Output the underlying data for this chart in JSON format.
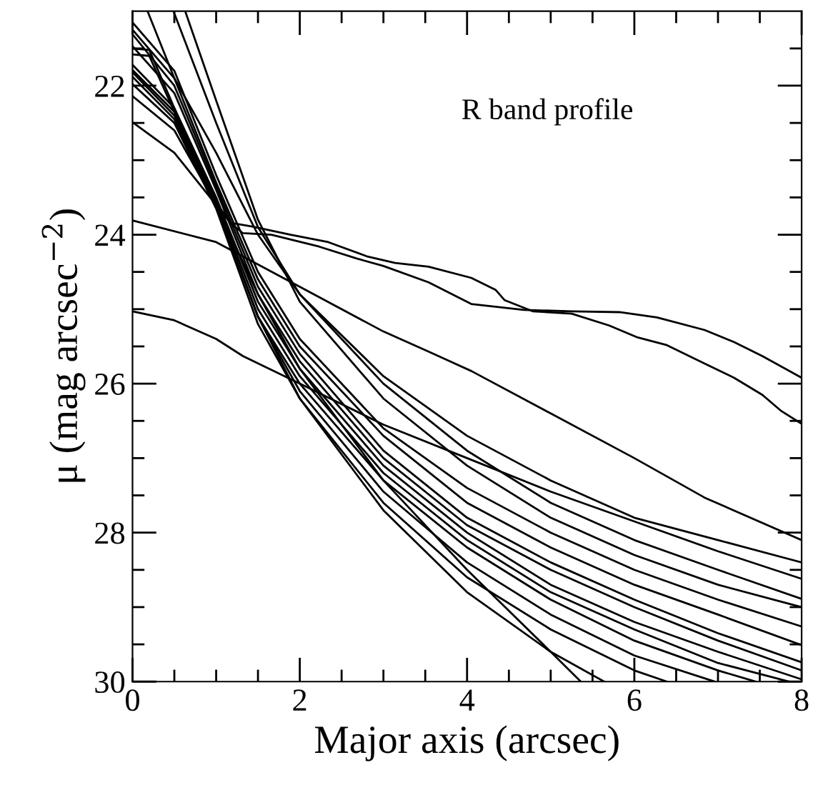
{
  "chart_data": {
    "type": "line",
    "xlabel": "Major axis (arcsec)",
    "ylabel": "μ (mag arcsec$^{−2}$)",
    "annotations": [
      "R band profile"
    ],
    "xlim": [
      0,
      8
    ],
    "ylim": [
      30,
      21
    ],
    "xticks": [
      0,
      {
        "value": 0.5,
        "label": null
      },
      {
        "value": 1,
        "label": null
      },
      {
        "value": 1.5,
        "label": null
      },
      2,
      {
        "value": 2.5,
        "label": null
      },
      {
        "value": 3,
        "label": null
      },
      {
        "value": 3.5,
        "label": null
      },
      4,
      {
        "value": 4.5,
        "label": null
      },
      {
        "value": 5,
        "label": null
      },
      {
        "value": 5.5,
        "label": null
      },
      6,
      {
        "value": 6.5,
        "label": null
      },
      {
        "value": 7,
        "label": null
      },
      {
        "value": 7.5,
        "label": null
      },
      8
    ],
    "yticks": [
      {
        "value": 21.5,
        "label": null
      },
      22,
      {
        "value": 22.5,
        "label": null
      },
      {
        "value": 23,
        "label": null
      },
      {
        "value": 23.5,
        "label": null
      },
      24,
      {
        "value": 24.5,
        "label": null
      },
      {
        "value": 25,
        "label": null
      },
      {
        "value": 25.5,
        "label": null
      },
      26,
      {
        "value": 26.5,
        "label": null
      },
      {
        "value": 27,
        "label": null
      },
      {
        "value": 27.5,
        "label": null
      },
      28,
      {
        "value": 28.5,
        "label": null
      },
      {
        "value": 29,
        "label": null
      },
      {
        "value": 29.5,
        "label": null
      },
      30
    ],
    "grid": false,
    "marker": "none",
    "line_style": "solid",
    "series": [
      {
        "color": "#000000",
        "x": [
          0,
          0.2,
          0.5,
          0.8,
          0.97,
          1.17,
          1.32,
          1.66,
          2.23,
          2.68,
          3.0,
          3.54,
          4.05,
          4.68,
          5.25,
          5.82,
          6.27,
          6.84,
          7.19,
          7.53,
          8
        ],
        "values": [
          21.5,
          21.52,
          22.3,
          23.1,
          23.52,
          23.84,
          23.98,
          24.0,
          24.16,
          24.32,
          24.42,
          24.64,
          24.93,
          25.01,
          25.03,
          25.04,
          25.11,
          25.28,
          25.44,
          25.63,
          25.92
        ]
      },
      {
        "color": "#000000",
        "x": [
          0,
          0.2,
          0.5,
          0.8,
          0.97,
          1.17,
          1.43,
          1.89,
          2.34,
          2.8,
          3.14,
          3.54,
          4.05,
          4.34,
          4.45,
          4.79,
          5.25,
          5.7,
          6.04,
          6.38,
          6.84,
          7.19,
          7.53,
          7.76,
          8
        ],
        "values": [
          21.58,
          21.6,
          22.35,
          23.15,
          23.55,
          23.84,
          23.89,
          24.0,
          24.1,
          24.29,
          24.38,
          24.43,
          24.58,
          24.74,
          24.88,
          25.03,
          25.06,
          25.22,
          25.38,
          25.48,
          25.73,
          25.92,
          26.15,
          26.37,
          26.54
        ]
      },
      {
        "color": "#000000",
        "x": [
          0,
          1,
          2,
          3,
          3.54,
          4.05,
          5,
          6,
          6.84,
          8
        ],
        "values": [
          23.81,
          24.1,
          24.7,
          25.3,
          25.57,
          25.83,
          26.4,
          27.0,
          27.53,
          28.1
        ]
      },
      {
        "color": "#000000",
        "x": [
          0,
          0.5,
          1,
          1.32,
          2,
          3,
          4,
          5,
          6,
          7,
          8
        ],
        "values": [
          25.03,
          25.15,
          25.4,
          25.63,
          26.0,
          26.55,
          27.0,
          27.45,
          27.85,
          28.25,
          28.62
        ]
      },
      {
        "color": "#000000",
        "x": [
          0.18,
          0.5,
          1,
          1.5,
          2,
          3,
          4,
          5,
          6,
          7,
          8
        ],
        "values": [
          21.0,
          21.9,
          22.9,
          24.0,
          24.8,
          25.9,
          26.7,
          27.3,
          27.8,
          28.1,
          28.4
        ]
      },
      {
        "color": "#000000",
        "x": [
          0.49,
          1,
          1.5,
          2,
          3,
          4,
          5,
          6,
          7,
          8
        ],
        "values": [
          21.0,
          22.5,
          23.9,
          24.8,
          26.0,
          26.9,
          27.6,
          28.1,
          28.5,
          28.89
        ]
      },
      {
        "color": "#000000",
        "x": [
          0.63,
          1,
          1.5,
          2,
          3,
          4,
          5,
          6,
          7,
          8
        ],
        "values": [
          21.0,
          22.2,
          23.8,
          24.9,
          26.2,
          27.1,
          27.8,
          28.3,
          28.7,
          29.0
        ]
      },
      {
        "color": "#000000",
        "x": [
          0,
          0.5,
          1,
          1.5,
          2,
          3,
          4,
          5,
          6,
          7,
          8
        ],
        "values": [
          21.15,
          21.8,
          23.2,
          24.5,
          25.4,
          26.6,
          27.4,
          28.0,
          28.5,
          28.9,
          29.26
        ]
      },
      {
        "color": "#000000",
        "x": [
          0,
          0.5,
          1,
          1.5,
          2,
          3,
          4,
          5,
          6,
          7,
          8
        ],
        "values": [
          21.25,
          21.9,
          23.3,
          24.6,
          25.5,
          26.7,
          27.6,
          28.2,
          28.7,
          29.1,
          29.51
        ]
      },
      {
        "color": "#000000",
        "x": [
          0,
          0.5,
          1,
          1.5,
          2,
          3,
          4,
          5,
          6,
          7,
          8
        ],
        "values": [
          21.31,
          22.0,
          23.35,
          24.7,
          25.6,
          26.9,
          27.8,
          28.4,
          28.9,
          29.35,
          29.74
        ]
      },
      {
        "color": "#000000",
        "x": [
          0,
          0.5,
          1,
          1.5,
          2,
          3,
          4,
          5,
          6,
          7,
          8
        ],
        "values": [
          21.47,
          22.1,
          23.4,
          24.8,
          25.7,
          27.0,
          27.9,
          28.5,
          29.0,
          29.45,
          29.85
        ]
      },
      {
        "color": "#000000",
        "x": [
          0,
          0.5,
          1,
          1.5,
          2,
          3,
          4,
          5,
          6,
          7,
          8
        ],
        "values": [
          21.72,
          22.3,
          23.5,
          24.9,
          25.8,
          27.1,
          28.0,
          28.7,
          29.2,
          29.6,
          29.97
        ]
      },
      {
        "color": "#000000",
        "x": [
          0,
          0.5,
          1,
          1.5,
          2,
          3,
          4,
          5,
          6,
          7,
          7.85
        ],
        "values": [
          21.79,
          22.35,
          23.55,
          25.0,
          25.9,
          27.2,
          28.1,
          28.8,
          29.3,
          29.75,
          30.0
        ]
      },
      {
        "color": "#000000",
        "x": [
          0,
          0.5,
          1,
          1.5,
          2,
          3,
          4,
          5,
          6,
          7,
          7.45
        ],
        "values": [
          21.82,
          22.4,
          23.6,
          25.1,
          26.0,
          27.3,
          28.2,
          28.9,
          29.45,
          29.85,
          30.0
        ]
      },
      {
        "color": "#000000",
        "x": [
          0,
          0.5,
          1,
          1.5,
          2,
          3,
          4,
          5,
          6,
          6.96
        ],
        "values": [
          21.88,
          22.45,
          23.6,
          25.1,
          26.1,
          27.45,
          28.4,
          29.1,
          29.65,
          30.0
        ]
      },
      {
        "color": "#000000",
        "x": [
          0,
          0.5,
          1,
          1.5,
          2,
          3,
          4,
          5,
          6,
          6.39
        ],
        "values": [
          21.98,
          22.5,
          23.65,
          25.2,
          26.2,
          27.6,
          28.6,
          29.3,
          29.85,
          30.0
        ]
      },
      {
        "color": "#000000",
        "x": [
          0,
          0.5,
          1,
          1.5,
          2,
          3,
          4,
          5,
          5.64
        ],
        "values": [
          22.14,
          22.6,
          23.6,
          25.1,
          26.2,
          27.7,
          28.8,
          29.6,
          30.0
        ]
      },
      {
        "color": "#000000",
        "x": [
          0,
          0.5,
          1,
          1.5,
          2,
          3,
          4,
          5,
          5.36
        ],
        "values": [
          22.49,
          22.9,
          23.6,
          24.8,
          25.8,
          27.3,
          28.5,
          29.6,
          30.0
        ]
      }
    ]
  }
}
